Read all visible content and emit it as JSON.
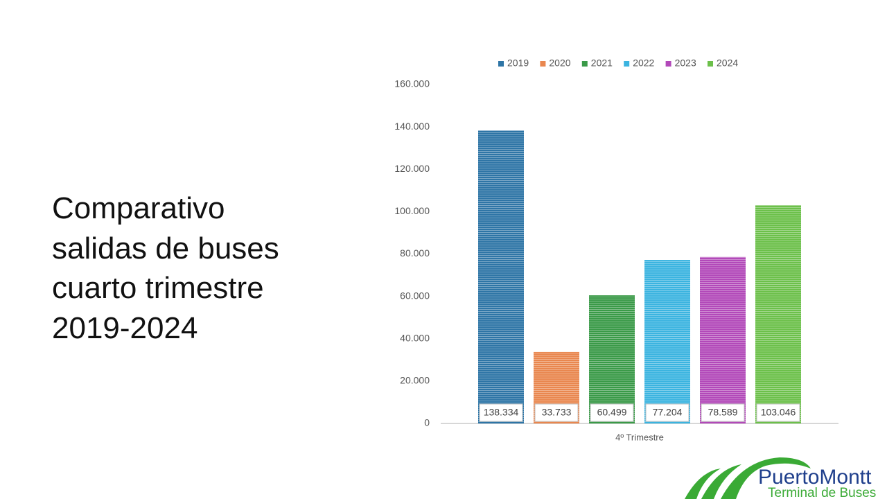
{
  "chart_data": {
    "type": "bar",
    "title": "Comparativo salidas de buses cuarto trimestre 2019-2024",
    "categories": [
      "4º Trimestre"
    ],
    "series": [
      {
        "name": "2019",
        "color": "#2e75a6",
        "values": [
          138334
        ],
        "value_labels": [
          "138.334"
        ]
      },
      {
        "name": "2020",
        "color": "#e9874f",
        "values": [
          33733
        ],
        "value_labels": [
          "33.733"
        ]
      },
      {
        "name": "2021",
        "color": "#3a9a48",
        "values": [
          60499
        ],
        "value_labels": [
          "60.499"
        ]
      },
      {
        "name": "2022",
        "color": "#3bb4e0",
        "values": [
          77204
        ],
        "value_labels": [
          "77.204"
        ]
      },
      {
        "name": "2023",
        "color": "#b249b9",
        "values": [
          78589
        ],
        "value_labels": [
          "78.589"
        ]
      },
      {
        "name": "2024",
        "color": "#6cc04a",
        "values": [
          103046
        ],
        "value_labels": [
          "103.046"
        ]
      }
    ],
    "ylim": [
      0,
      160000
    ],
    "yticks": [
      0,
      {
        "value": 20000,
        "label": "20.000"
      },
      {
        "value": 40000,
        "label": "40.000"
      },
      {
        "value": 60000,
        "label": "60.000"
      },
      {
        "value": 80000,
        "label": "80.000"
      },
      {
        "value": 100000,
        "label": "100.000"
      },
      {
        "value": 120000,
        "label": "120.000"
      },
      {
        "value": 140000,
        "label": "140.000"
      },
      {
        "value": 160000,
        "label": "160.000"
      }
    ],
    "legend": "top"
  },
  "logo": {
    "name": "PuertoMontt",
    "subtitle": "Terminal de Buses"
  }
}
